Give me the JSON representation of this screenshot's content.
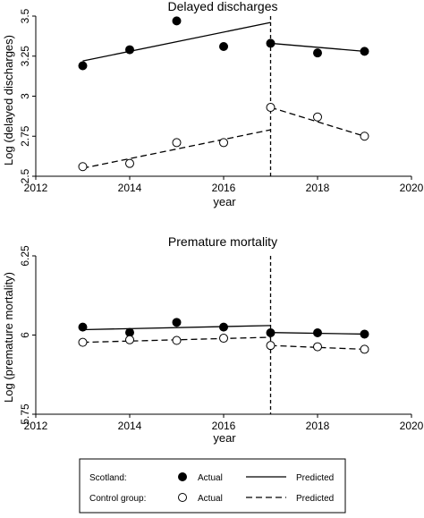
{
  "chart_data": [
    {
      "type": "line",
      "title": "Delayed discharges",
      "xlabel": "year",
      "ylabel": "Log (delayed discharges)",
      "xlim": [
        2012,
        2020
      ],
      "ylim": [
        2.5,
        3.5
      ],
      "xticks": [
        2012,
        2014,
        2016,
        2018,
        2020
      ],
      "xtick_labels": [
        "2012",
        "2014",
        "2016",
        "2018",
        "2020"
      ],
      "yticks": [
        2.5,
        2.75,
        3,
        3.25,
        3.5
      ],
      "ytick_labels": [
        "2.5",
        "2.75",
        "3",
        "3.25",
        "3.5"
      ],
      "intervention_year": 2017,
      "grid": false,
      "series": [
        {
          "name": "Scotland: Actual",
          "group": "Scotland",
          "kind": "actual",
          "marker": "filled-circle",
          "x": [
            2013,
            2014,
            2015,
            2016,
            2017,
            2018,
            2019
          ],
          "y": [
            3.19,
            3.29,
            3.47,
            3.31,
            3.33,
            3.27,
            3.28
          ]
        },
        {
          "name": "Scotland: Predicted (pre)",
          "group": "Scotland",
          "kind": "predicted",
          "dash": "solid",
          "x": [
            2013,
            2017
          ],
          "y": [
            3.22,
            3.46
          ]
        },
        {
          "name": "Scotland: Predicted (post)",
          "group": "Scotland",
          "kind": "predicted",
          "dash": "solid",
          "x": [
            2017,
            2019
          ],
          "y": [
            3.33,
            3.28
          ]
        },
        {
          "name": "Control group: Actual",
          "group": "Control group",
          "kind": "actual",
          "marker": "hollow-circle",
          "x": [
            2013,
            2014,
            2015,
            2016,
            2017,
            2018,
            2019
          ],
          "y": [
            2.56,
            2.58,
            2.71,
            2.71,
            2.93,
            2.87,
            2.75
          ]
        },
        {
          "name": "Control group: Predicted (pre)",
          "group": "Control group",
          "kind": "predicted",
          "dash": "dashed",
          "x": [
            2013,
            2017
          ],
          "y": [
            2.55,
            2.79
          ]
        },
        {
          "name": "Control group: Predicted (post)",
          "group": "Control group",
          "kind": "predicted",
          "dash": "dashed",
          "x": [
            2017,
            2019
          ],
          "y": [
            2.93,
            2.75
          ]
        }
      ]
    },
    {
      "type": "line",
      "title": "Premature mortality",
      "xlabel": "year",
      "ylabel": "Log (premature mortality)",
      "xlim": [
        2012,
        2020
      ],
      "ylim": [
        5.75,
        6.25
      ],
      "xticks": [
        2012,
        2014,
        2016,
        2018,
        2020
      ],
      "xtick_labels": [
        "2012",
        "2014",
        "2016",
        "2018",
        "2020"
      ],
      "yticks": [
        5.75,
        6,
        6.25
      ],
      "ytick_labels": [
        "5.75",
        "6",
        "6.25"
      ],
      "intervention_year": 2017,
      "grid": false,
      "series": [
        {
          "name": "Scotland: Actual",
          "group": "Scotland",
          "kind": "actual",
          "marker": "filled-circle",
          "x": [
            2013,
            2014,
            2015,
            2016,
            2017,
            2018,
            2019
          ],
          "y": [
            6.025,
            6.008,
            6.04,
            6.025,
            6.007,
            6.007,
            6.003
          ]
        },
        {
          "name": "Scotland: Predicted (pre)",
          "group": "Scotland",
          "kind": "predicted",
          "dash": "solid",
          "x": [
            2013,
            2017
          ],
          "y": [
            6.017,
            6.03
          ]
        },
        {
          "name": "Scotland: Predicted (post)",
          "group": "Scotland",
          "kind": "predicted",
          "dash": "solid",
          "x": [
            2017,
            2019
          ],
          "y": [
            6.008,
            6.003
          ]
        },
        {
          "name": "Control group: Actual",
          "group": "Control group",
          "kind": "actual",
          "marker": "hollow-circle",
          "x": [
            2013,
            2014,
            2015,
            2016,
            2017,
            2018,
            2019
          ],
          "y": [
            5.977,
            5.985,
            5.983,
            5.99,
            5.967,
            5.963,
            5.955
          ]
        },
        {
          "name": "Control group: Predicted (pre)",
          "group": "Control group",
          "kind": "predicted",
          "dash": "dashed",
          "x": [
            2013,
            2017
          ],
          "y": [
            5.977,
            5.993
          ]
        },
        {
          "name": "Control group: Predicted (post)",
          "group": "Control group",
          "kind": "predicted",
          "dash": "dashed",
          "x": [
            2017,
            2019
          ],
          "y": [
            5.967,
            5.955
          ]
        }
      ]
    }
  ],
  "legend": {
    "rows": [
      {
        "group_label": "Scotland:",
        "marker": "filled-circle",
        "actual_label": "Actual",
        "line": "solid",
        "predicted_label": "Predicted"
      },
      {
        "group_label": "Control group:",
        "marker": "hollow-circle",
        "actual_label": "Actual",
        "line": "dashed",
        "predicted_label": "Predicted"
      }
    ]
  }
}
